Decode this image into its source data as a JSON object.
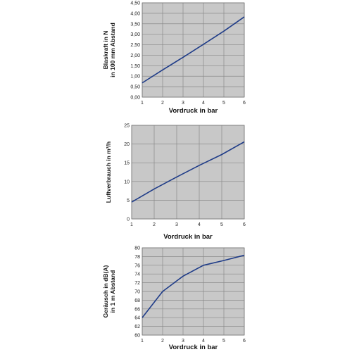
{
  "chart_data": [
    {
      "type": "line",
      "xlabel": "Vordruck in bar",
      "ylabel_lines": [
        "Blaskraft in N",
        "in 100 mm Abstand"
      ],
      "xlim": [
        1,
        6
      ],
      "ylim": [
        0,
        4.5
      ],
      "x_ticks": [
        "1",
        "2",
        "3",
        "4",
        "5",
        "6"
      ],
      "y_ticks": [
        "0,00",
        "0,50",
        "1,00",
        "1,50",
        "2,00",
        "2,50",
        "3,00",
        "3,50",
        "4,00",
        "4,50"
      ],
      "grid": true,
      "colors": {
        "line": "#1f3c88",
        "plot_bg": "#c8c8c8",
        "grid": "#8a8a8a"
      },
      "x": [
        1,
        2,
        3,
        4,
        5,
        6
      ],
      "y": [
        0.68,
        1.3,
        1.9,
        2.52,
        3.15,
        3.83
      ]
    },
    {
      "type": "line",
      "xlabel": "Vordruck in bar",
      "ylabel_lines": [
        "Luftverbrauch in m³/h"
      ],
      "xlim": [
        1,
        6
      ],
      "ylim": [
        0,
        25
      ],
      "x_ticks": [
        "1",
        "2",
        "3",
        "4",
        "5",
        "6"
      ],
      "y_ticks": [
        "0",
        "5",
        "10",
        "15",
        "20",
        "25"
      ],
      "grid": true,
      "colors": {
        "line": "#1f3c88",
        "plot_bg": "#c8c8c8",
        "grid": "#8a8a8a"
      },
      "x": [
        1,
        2,
        3,
        4,
        5,
        6
      ],
      "y": [
        4.5,
        8.0,
        11.2,
        14.3,
        17.2,
        20.6
      ]
    },
    {
      "type": "line",
      "xlabel": "Vordruck in bar",
      "ylabel_lines": [
        "Geräusch in dB(A)",
        "in 1 m Abstand"
      ],
      "xlim": [
        1,
        6
      ],
      "ylim": [
        60,
        80
      ],
      "x_ticks": [
        "1",
        "2",
        "3",
        "4",
        "5",
        "6"
      ],
      "y_ticks": [
        "60",
        "62",
        "64",
        "66",
        "68",
        "70",
        "72",
        "74",
        "76",
        "78",
        "80"
      ],
      "grid": true,
      "colors": {
        "line": "#1f3c88",
        "plot_bg": "#c8c8c8",
        "grid": "#8a8a8a"
      },
      "x": [
        1,
        2,
        3,
        4,
        5,
        6
      ],
      "y": [
        64.0,
        70.0,
        73.5,
        76.0,
        77.1,
        78.3
      ]
    }
  ]
}
